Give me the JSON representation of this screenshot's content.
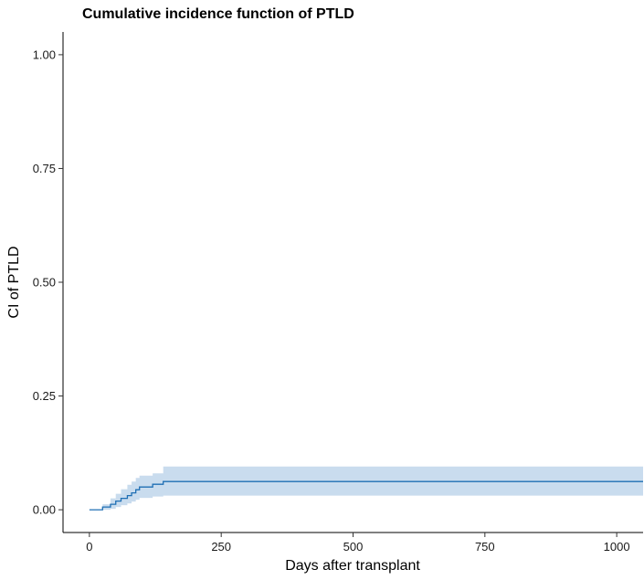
{
  "chart_data": {
    "type": "line",
    "title": "Cumulative incidence function of PTLD",
    "xlabel": "Days after transplant",
    "ylabel": "CI of PTLD",
    "xlim": [
      -50,
      1050
    ],
    "ylim": [
      -0.05,
      1.05
    ],
    "x_ticks": [
      0,
      250,
      500,
      750,
      1000
    ],
    "x_tick_labels": [
      "0",
      "250",
      "500",
      "750",
      "1000"
    ],
    "y_ticks": [
      0,
      0.25,
      0.5,
      0.75,
      1.0
    ],
    "y_tick_labels": [
      "0.00",
      "0.25",
      "0.50",
      "0.75",
      "1.00"
    ],
    "grid": false,
    "legend": "none",
    "line_color": "#1f6fb4",
    "band_color": "#c9dcee",
    "series": [
      {
        "step": true,
        "x": [
          0,
          25,
          40,
          50,
          60,
          72,
          80,
          88,
          95,
          120,
          132,
          140,
          1050
        ],
        "y": [
          0,
          0.006,
          0.012,
          0.019,
          0.025,
          0.031,
          0.037,
          0.044,
          0.05,
          0.056,
          0.056,
          0.062,
          0.062
        ],
        "lower": [
          0,
          0,
          0.002,
          0.006,
          0.01,
          0.014,
          0.018,
          0.022,
          0.026,
          0.029,
          0.029,
          0.031,
          0.031
        ],
        "upper": [
          0,
          0.012,
          0.025,
          0.035,
          0.045,
          0.055,
          0.062,
          0.07,
          0.075,
          0.08,
          0.08,
          0.095,
          0.095
        ]
      }
    ]
  }
}
